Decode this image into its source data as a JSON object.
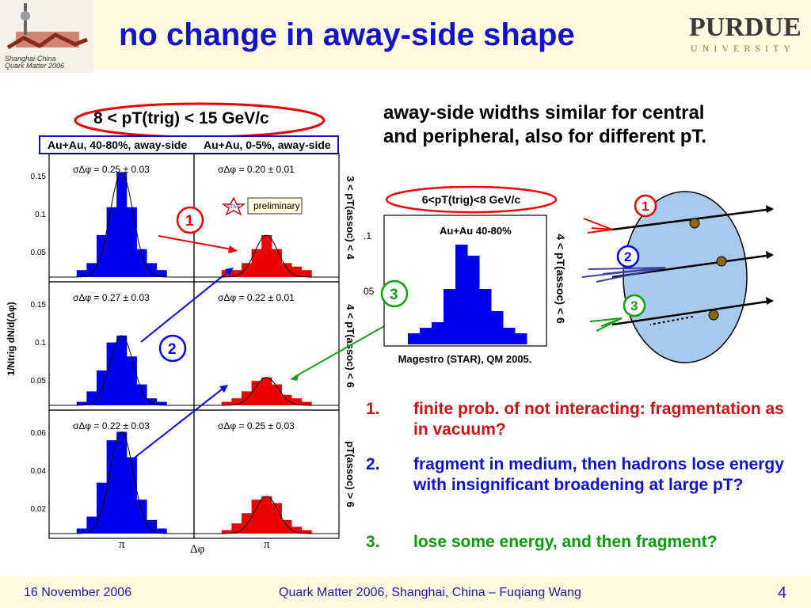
{
  "title": "no change in away-side shape",
  "purdue": {
    "line1": "PURDUE",
    "line2": "UNIVERSITY"
  },
  "conf_logo": {
    "text1": "Shanghai-China",
    "text2": "Quark Matter 2006"
  },
  "trig_label": "8 < pT(trig) < 15 GeV/c",
  "panel_headers": [
    "Au+Au, 40-80%, away-side",
    "Au+Au, 0-5%, away-side"
  ],
  "row_labels": [
    "3 < pT(assoc) < 4",
    "4 < pT(assoc) < 6",
    "pT(assoc) > 6"
  ],
  "sigmas": [
    [
      "σΔφ = 0.25 ± 0.03",
      "σΔφ = 0.20 ± 0.01"
    ],
    [
      "σΔφ = 0.27 ± 0.03",
      "σΔφ = 0.22 ± 0.01"
    ],
    [
      "σΔφ = 0.22 ± 0.03",
      "σΔφ = 0.25 ± 0.03"
    ]
  ],
  "y_ticks": [
    [
      "0.15",
      "0.1",
      "0.05"
    ],
    [
      "0.15",
      "0.1",
      "0.05"
    ],
    [
      "0.06",
      "0.04",
      "0.02"
    ]
  ],
  "y_axis_label": "1/Ntrig dN/d(Δφ)",
  "x_tick": "π",
  "x_axis_label": "Δφ",
  "preliminary": "preliminary",
  "star": "STAR",
  "bullet_text": {
    "line1": "away-side widths similar for central",
    "line2": "and peripheral, also for different pT."
  },
  "inset": {
    "trig_label": "6<pT(trig)<8 GeV/c",
    "panel_label": "Au+Au 40-80%",
    "side_label": "4 < pT(assoc) < 6",
    "caption": "Magestro (STAR), QM 2005.",
    "tick1": ".1",
    "tick2": "05"
  },
  "markers": [
    "1",
    "2",
    "3"
  ],
  "list": [
    {
      "num": "1.",
      "text": "finite prob. of not interacting: fragmentation as in vacuum?",
      "color": "#d01010"
    },
    {
      "num": "2.",
      "text": "fragment in medium, then hadrons lose energy with insignificant broadening at large pT?",
      "color": "#1010d0"
    },
    {
      "num": "3.",
      "text": "lose some energy, and then fragment?",
      "color": "#0a9a0a"
    }
  ],
  "footer": {
    "date": "16 November 2006",
    "center": "Quark Matter 2006, Shanghai, China – Fuqiang Wang",
    "page": "4"
  },
  "colors": {
    "blue": "#0000ee",
    "red": "#ee0000",
    "green": "#10a010",
    "title": "#1313cc"
  },
  "chart_data": [
    {
      "type": "bar",
      "title": "Au+Au, 40-80%, away-side",
      "row": "3 < pT(assoc) < 4",
      "values": [
        0.01,
        0.02,
        0.06,
        0.1,
        0.15,
        0.1,
        0.04,
        0.02,
        0.01
      ]
    },
    {
      "type": "bar",
      "title": "Au+Au, 0-5%, away-side",
      "row": "3 < pT(assoc) < 4",
      "values": [
        0.01,
        0.01,
        0.02,
        0.04,
        0.06,
        0.04,
        0.02,
        0.015,
        0.01
      ]
    },
    {
      "type": "bar",
      "title": "Au+Au, 40-80%, away-side",
      "row": "4 < pT(assoc) < 6",
      "values": [
        0.005,
        0.02,
        0.05,
        0.09,
        0.1,
        0.07,
        0.03,
        0.01,
        0.005
      ]
    },
    {
      "type": "bar",
      "title": "Au+Au, 0-5%, away-side",
      "row": "4 < pT(assoc) < 6",
      "values": [
        0.005,
        0.01,
        0.02,
        0.035,
        0.04,
        0.03,
        0.015,
        0.01,
        0.005
      ]
    },
    {
      "type": "bar",
      "title": "Au+Au, 40-80%, away-side",
      "row": "pT(assoc) > 6",
      "values": [
        0.003,
        0.01,
        0.03,
        0.055,
        0.06,
        0.045,
        0.02,
        0.008,
        0.003
      ]
    },
    {
      "type": "bar",
      "title": "Au+Au, 0-5%, away-side",
      "row": "pT(assoc) > 6",
      "values": [
        0.002,
        0.006,
        0.012,
        0.02,
        0.022,
        0.018,
        0.008,
        0.004,
        0.002
      ]
    },
    {
      "type": "bar",
      "title": "Au+Au 40-80%",
      "values": [
        0.01,
        0.015,
        0.02,
        0.05,
        0.09,
        0.08,
        0.05,
        0.03,
        0.015,
        0.01
      ]
    }
  ]
}
